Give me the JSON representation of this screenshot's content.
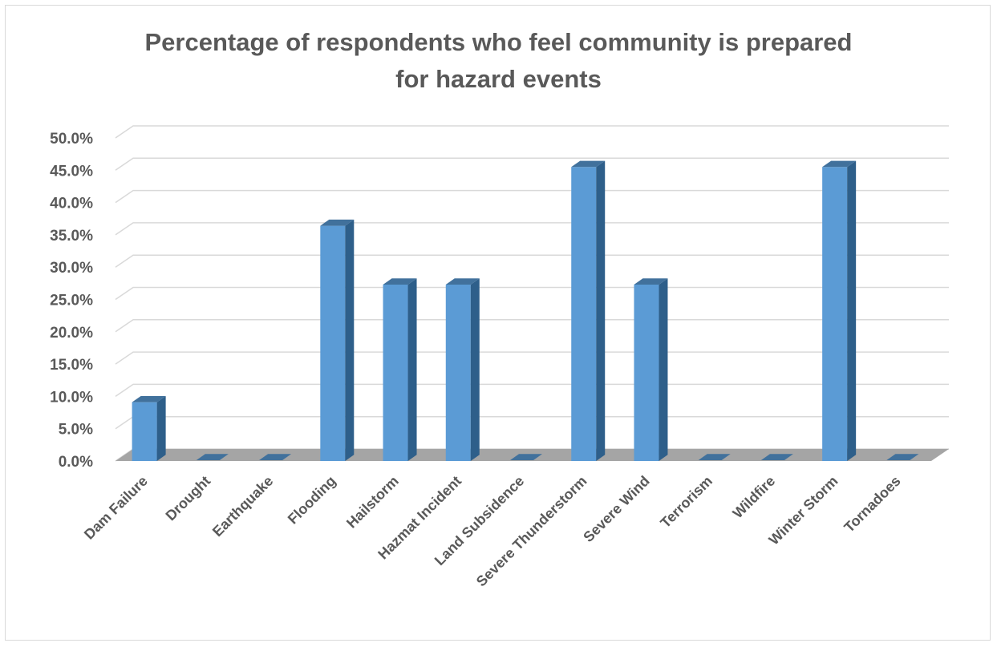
{
  "chart_data": {
    "type": "bar",
    "title_lines": [
      "Percentage of respondents who feel community is prepared",
      "for hazard events"
    ],
    "categories": [
      "Dam Failure",
      "Drought",
      "Earthquake",
      "Flooding",
      "Hailstorm",
      "Hazmat Incident",
      "Land Subsidence",
      "Severe Thunderstorm",
      "Severe Wind",
      "Terrorism",
      "Wildfire",
      "Winter Storm",
      "Tornadoes"
    ],
    "values": [
      9.1,
      0.0,
      0.0,
      36.4,
      27.3,
      27.3,
      0.0,
      45.5,
      27.3,
      0.0,
      0.0,
      45.5,
      0.0
    ],
    "ylim": [
      0,
      50
    ],
    "yticks": [
      "0.0%",
      "5.0%",
      "10.0%",
      "15.0%",
      "20.0%",
      "25.0%",
      "30.0%",
      "35.0%",
      "40.0%",
      "45.0%",
      "50.0%"
    ],
    "grid": true,
    "bar_style": "3d-column",
    "colors": {
      "bar_front": "#5b9bd5",
      "bar_side": "#2e5f8a",
      "bar_top": "#41719c",
      "floor": "#a5a5a5",
      "grid": "#d9d9d9",
      "text": "#595959"
    }
  }
}
